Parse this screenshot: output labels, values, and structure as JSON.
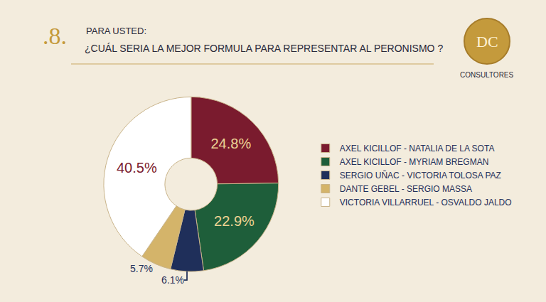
{
  "chart_data": {
    "type": "pie",
    "annotations": [
      ".8.",
      "DC",
      "CONSULTORES"
    ],
    "subtitle": "PARA USTED:",
    "title": "¿CUÁL SERIA LA MEJOR FORMULA PARA REPRESENTAR AL PERONISMO ?",
    "categories": [
      "AXEL KICILLOF - NATALIA DE LA SOTA",
      "AXEL KICILLOF - MYRIAM BREGMAN",
      "SERGIO UÑAC - VICTORIA TOLOSA PAZ",
      "DANTE GEBEL - SERGIO MASSA",
      "VICTORIA VILLARRUEL - OSVALDO JALDO"
    ],
    "values": [
      24.8,
      22.9,
      6.1,
      5.7,
      40.5
    ],
    "value_labels": [
      "24.8%",
      "22.9%",
      "6.1%",
      "5.7%",
      "40.5%"
    ],
    "colors": [
      "#7a1b2e",
      "#1e5e3a",
      "#1f2f5a",
      "#d4b46a",
      "#ffffff"
    ],
    "data_labels": true,
    "legend": "right"
  }
}
